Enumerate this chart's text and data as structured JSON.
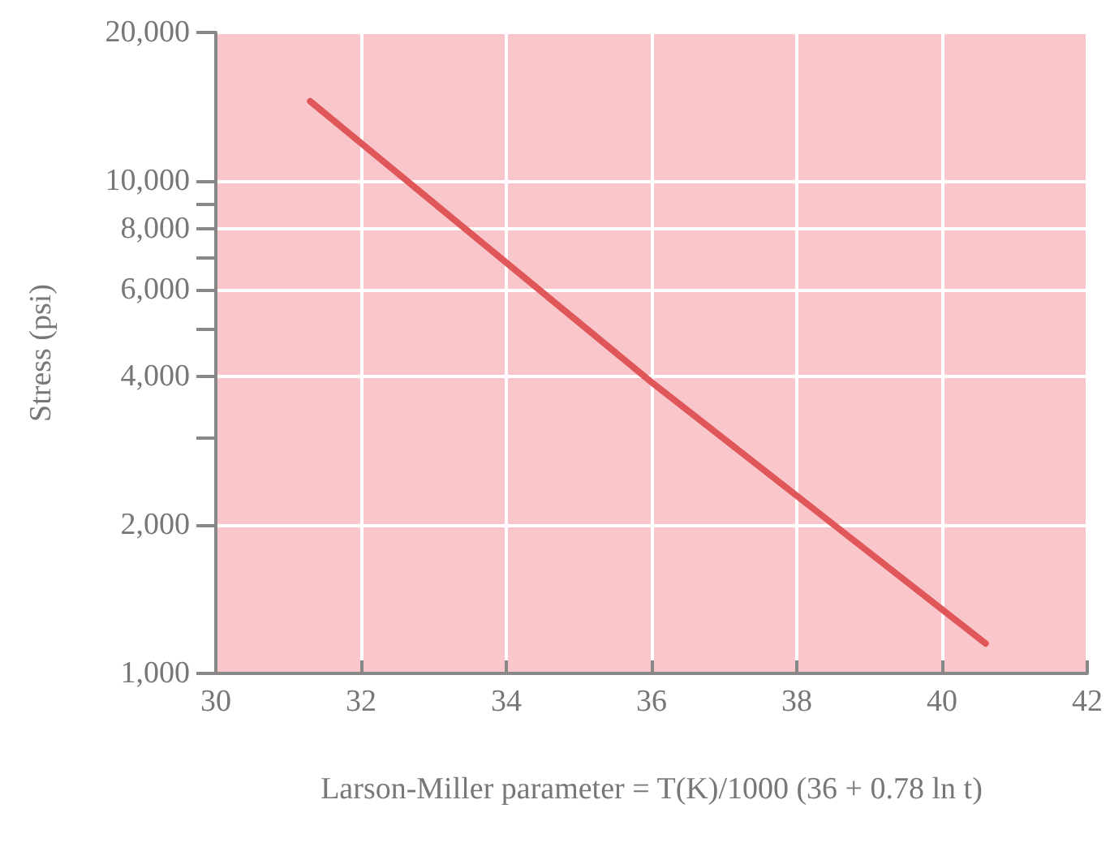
{
  "chart_data": {
    "type": "line",
    "xlabel": "Larson-Miller parameter = T(K)/1000 (36 + 0.78 ln t)",
    "ylabel": "Stress (psi)",
    "x": [
      31.3,
      36,
      40.6
    ],
    "series": [
      {
        "color": "#e0575a",
        "values": [
          14500,
          3900,
          1150
        ]
      }
    ],
    "xlim": [
      30,
      42
    ],
    "xticks": [
      30,
      32,
      34,
      36,
      38,
      40,
      42
    ],
    "ylim": [
      1000,
      20000
    ],
    "yticks": [
      {
        "value": 1000,
        "label": "1,000"
      },
      {
        "value": 2000,
        "label": "2,000"
      },
      {
        "value": 3000,
        "label": null
      },
      {
        "value": 4000,
        "label": "4,000"
      },
      {
        "value": 5000,
        "label": null
      },
      {
        "value": 6000,
        "label": "6,000"
      },
      {
        "value": 7000,
        "label": null
      },
      {
        "value": 8000,
        "label": "8,000"
      },
      {
        "value": 9000,
        "label": null
      },
      {
        "value": 10000,
        "label": "10,000"
      },
      {
        "value": 20000,
        "label": "20,000"
      }
    ],
    "log": true,
    "grid": true,
    "marker": "none",
    "line_style": "solid"
  }
}
